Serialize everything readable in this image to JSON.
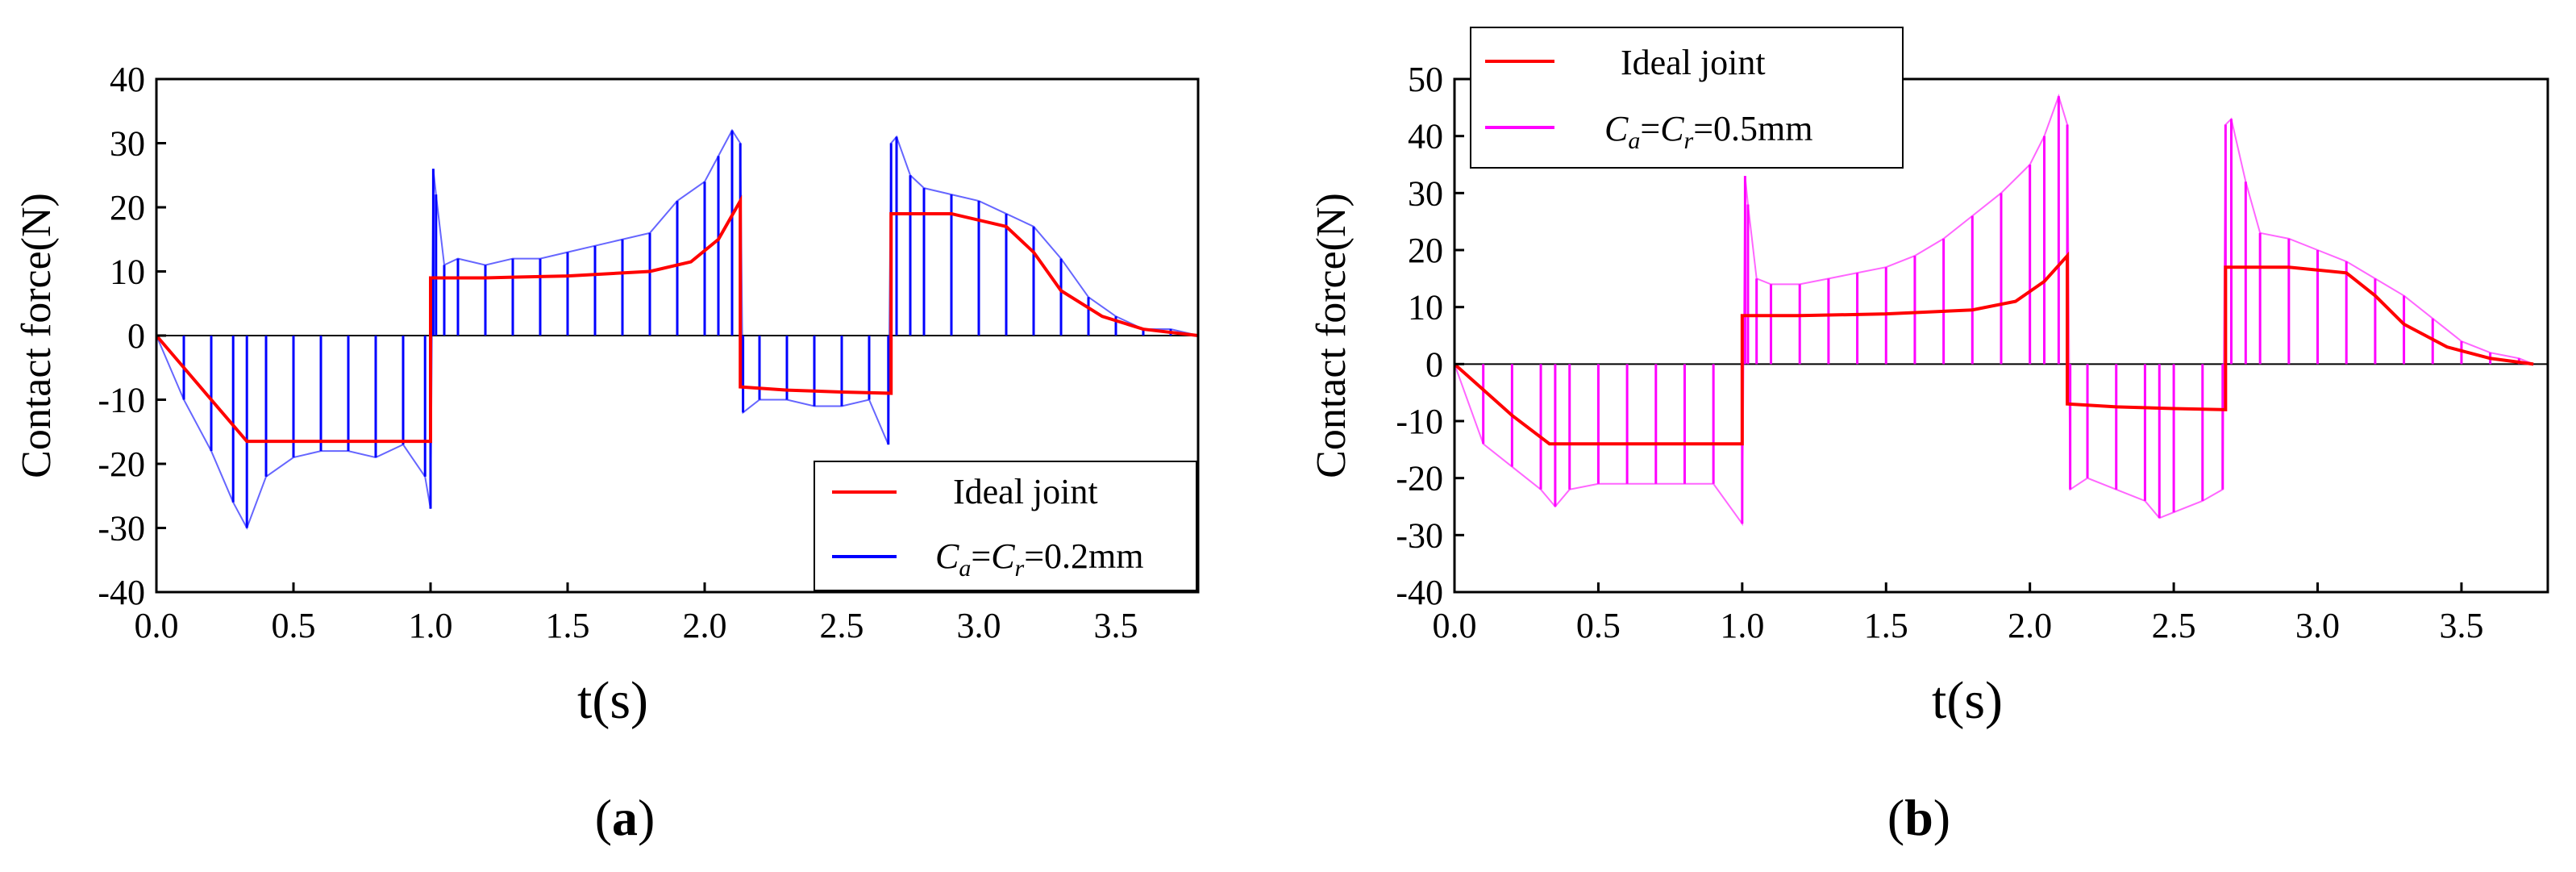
{
  "chart_data": [
    {
      "type": "line",
      "panel_label": "a",
      "xlabel": "t(s)",
      "ylabel": "Contact force(N)",
      "xlim": [
        0,
        3.8
      ],
      "ylim": [
        -40,
        40
      ],
      "xticks": [
        0.0,
        0.5,
        1.0,
        1.5,
        2.0,
        2.5,
        3.0,
        3.5
      ],
      "xtick_labels": [
        "0.0",
        "0.5",
        "1.0",
        "1.5",
        "2.0",
        "2.5",
        "3.0",
        "3.5"
      ],
      "yticks": [
        -40,
        -30,
        -20,
        -10,
        0,
        10,
        20,
        30,
        40
      ],
      "ytick_labels": [
        "-40",
        "-30",
        "-20",
        "-10",
        "0",
        "10",
        "20",
        "30",
        "40"
      ],
      "legend_position": "bottom-right",
      "series": [
        {
          "name": "Ideal joint",
          "legend_label": "Ideal joint",
          "color": "#ff0000",
          "x": [
            0,
            0.1,
            0.2,
            0.33,
            0.5,
            0.8,
            1.0,
            1.0,
            1.2,
            1.5,
            1.8,
            1.95,
            2.05,
            2.13,
            2.13,
            2.3,
            2.5,
            2.68,
            2.68,
            2.9,
            3.1,
            3.2,
            3.3,
            3.45,
            3.6,
            3.8
          ],
          "y": [
            0,
            -5,
            -10,
            -16.5,
            -16.5,
            -16.5,
            -16.5,
            9,
            9,
            9.3,
            10,
            11.5,
            15,
            21,
            -8,
            -8.5,
            -8.8,
            -9,
            19,
            19,
            17,
            13,
            7,
            3,
            1,
            0
          ]
        },
        {
          "name": "C_a=C_r=0.2mm",
          "legend_parts": [
            "C",
            "a",
            "=",
            "C",
            "r",
            "=0.2mm"
          ],
          "color": "#0000ff",
          "x": [
            0,
            0.1,
            0.2,
            0.28,
            0.33,
            0.4,
            0.5,
            0.6,
            0.7,
            0.8,
            0.9,
            0.98,
            1.0,
            1.01,
            1.02,
            1.05,
            1.1,
            1.2,
            1.3,
            1.4,
            1.5,
            1.6,
            1.7,
            1.8,
            1.9,
            2.0,
            2.05,
            2.1,
            2.13,
            2.14,
            2.2,
            2.3,
            2.4,
            2.5,
            2.6,
            2.67,
            2.68,
            2.7,
            2.75,
            2.8,
            2.9,
            3.0,
            3.1,
            3.2,
            3.3,
            3.4,
            3.5,
            3.6,
            3.7,
            3.8
          ],
          "y": [
            0,
            -10,
            -18,
            -26,
            -30,
            -22,
            -19,
            -18,
            -18,
            -19,
            -17,
            -22,
            -27,
            26,
            22,
            11,
            12,
            11,
            12,
            12,
            13,
            14,
            15,
            16,
            21,
            24,
            28,
            32,
            30,
            -12,
            -10,
            -10,
            -11,
            -11,
            -10,
            -17,
            30,
            31,
            25,
            23,
            22,
            21,
            19,
            17,
            12,
            6,
            3,
            1,
            1,
            0
          ]
        }
      ]
    },
    {
      "type": "line",
      "panel_label": "b",
      "xlabel": "t(s)",
      "ylabel": "Contact force(N)",
      "xlim": [
        0,
        3.8
      ],
      "ylim": [
        -40,
        50
      ],
      "xticks": [
        0.0,
        0.5,
        1.0,
        1.5,
        2.0,
        2.5,
        3.0,
        3.5
      ],
      "xtick_labels": [
        "0.0",
        "0.5",
        "1.0",
        "1.5",
        "2.0",
        "2.5",
        "3.0",
        "3.5"
      ],
      "yticks": [
        -40,
        -30,
        -20,
        -10,
        0,
        10,
        20,
        30,
        40,
        50
      ],
      "ytick_labels": [
        "-40",
        "-30",
        "-20",
        "-10",
        "0",
        "10",
        "20",
        "30",
        "40",
        "50"
      ],
      "legend_position": "top-left",
      "series": [
        {
          "name": "Ideal joint",
          "legend_label": "Ideal joint",
          "color": "#ff0000",
          "x": [
            0,
            0.1,
            0.2,
            0.33,
            0.5,
            0.8,
            1.0,
            1.0,
            1.2,
            1.5,
            1.8,
            1.95,
            2.05,
            2.13,
            2.13,
            2.3,
            2.5,
            2.68,
            2.68,
            2.9,
            3.1,
            3.2,
            3.3,
            3.45,
            3.6,
            3.75
          ],
          "y": [
            0,
            -4.5,
            -9,
            -14,
            -14,
            -14,
            -14,
            8.5,
            8.5,
            8.8,
            9.5,
            11,
            14.5,
            19,
            -7,
            -7.5,
            -7.8,
            -8,
            17,
            17,
            16,
            12,
            7,
            3,
            1,
            0
          ]
        },
        {
          "name": "C_a=C_r=0.5mm",
          "legend_parts": [
            "C",
            "a",
            "=",
            "C",
            "r",
            "=0.5mm"
          ],
          "color": "#ff00ff",
          "x": [
            0,
            0.1,
            0.2,
            0.3,
            0.35,
            0.4,
            0.5,
            0.6,
            0.7,
            0.8,
            0.9,
            1.0,
            1.01,
            1.02,
            1.05,
            1.1,
            1.2,
            1.3,
            1.4,
            1.5,
            1.6,
            1.7,
            1.8,
            1.9,
            2.0,
            2.05,
            2.1,
            2.13,
            2.14,
            2.2,
            2.3,
            2.4,
            2.45,
            2.5,
            2.6,
            2.67,
            2.68,
            2.7,
            2.75,
            2.8,
            2.9,
            3.0,
            3.1,
            3.2,
            3.3,
            3.4,
            3.5,
            3.6,
            3.7,
            3.75
          ],
          "y": [
            0,
            -14,
            -18,
            -22,
            -25,
            -22,
            -21,
            -21,
            -21,
            -21,
            -21,
            -28,
            33,
            28,
            15,
            14,
            14,
            15,
            16,
            17,
            19,
            22,
            26,
            30,
            35,
            40,
            47,
            42,
            -22,
            -20,
            -22,
            -24,
            -27,
            -26,
            -24,
            -22,
            42,
            43,
            32,
            23,
            22,
            20,
            18,
            15,
            12,
            8,
            4,
            2,
            1,
            0
          ]
        }
      ]
    }
  ]
}
